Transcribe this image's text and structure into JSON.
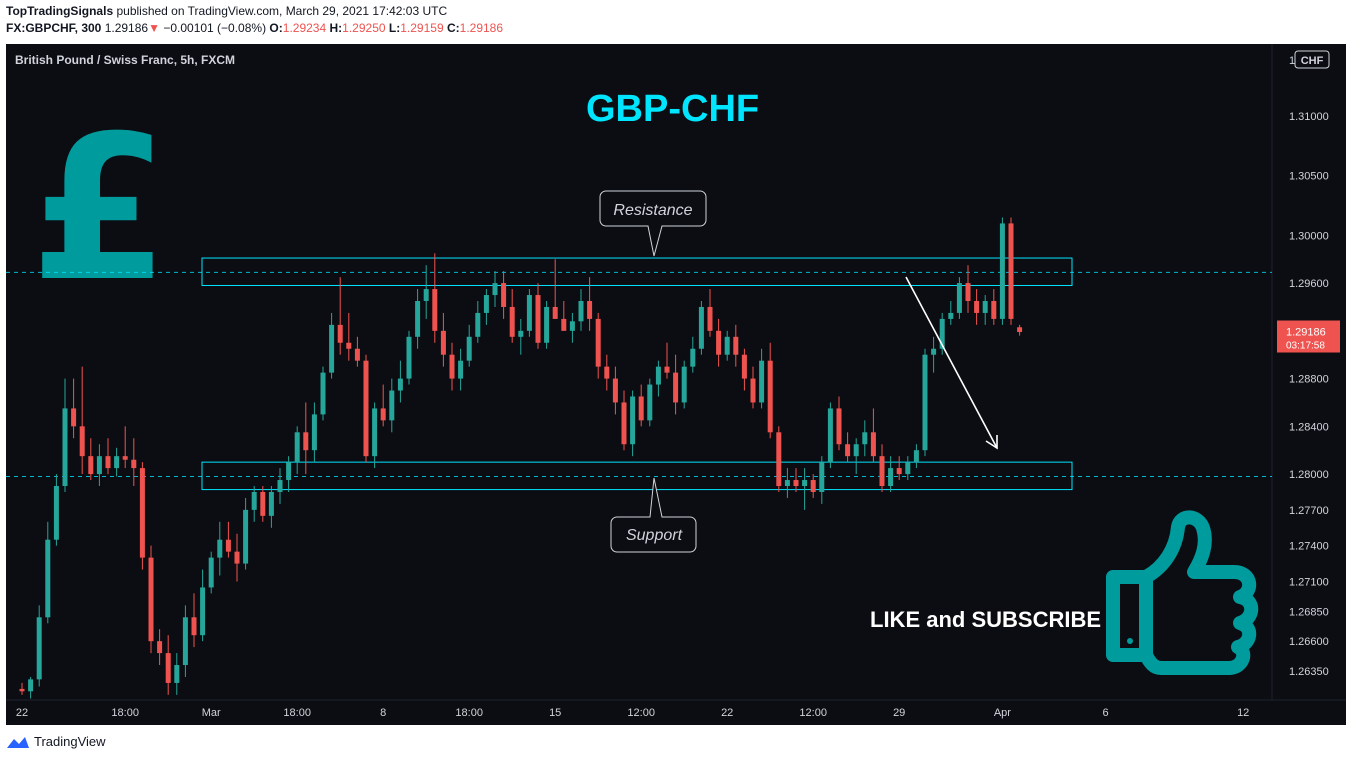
{
  "header": {
    "author": "TopTradingSignals",
    "published_text": "published on TradingView.com, March 29, 2021 17:42:03 UTC",
    "symbol": "FX:GBPCHF, 300",
    "price": "1.29186",
    "arrow": "▼",
    "change": "−0.00101 (−0.08%)",
    "o_label": "O:",
    "o_value": "1.29234",
    "h_label": "H:",
    "h_value": "1.29250",
    "l_label": "L:",
    "l_value": "1.29159",
    "c_label": "C:",
    "c_value": "1.29186"
  },
  "chart_title": "British Pound / Swiss Franc, 5h, FXCM",
  "currency_badge": "CHF",
  "scale_top_label": "1",
  "price_tag": {
    "value": "1.29186",
    "countdown": "03:17:58"
  },
  "annotations": {
    "title": "GBP-CHF",
    "resistance": "Resistance",
    "support": "Support",
    "cta": "LIKE and SUBSCRIBE"
  },
  "footer": {
    "brand": "TradingView"
  },
  "colors": {
    "up": "#26a69a",
    "down": "#ef5350",
    "accent": "#00e5ff",
    "teal_icon": "#009b9d",
    "background": "#0c0d12",
    "price_tag": "#ef5350"
  },
  "chart_data": {
    "type": "candlestick",
    "title": "",
    "xlabel": "",
    "ylabel": "",
    "ylim": [
      1.2605,
      1.315
    ],
    "y_ticks": [
      1.31,
      1.305,
      1.3,
      1.296,
      1.288,
      1.284,
      1.28,
      1.277,
      1.274,
      1.271,
      1.2685,
      1.266,
      1.2635
    ],
    "y_tick_labels": [
      "1.31000",
      "1.30500",
      "1.30000",
      "1.29600",
      "1.28800",
      "1.28400",
      "1.28000",
      "1.27700",
      "1.27400",
      "1.27100",
      "1.26850",
      "1.26600",
      "1.26350"
    ],
    "x_tick_labels": [
      {
        "label": "22",
        "bar": 0
      },
      {
        "label": "18:00",
        "bar": 12
      },
      {
        "label": "Mar",
        "bar": 22
      },
      {
        "label": "18:00",
        "bar": 32
      },
      {
        "label": "8",
        "bar": 42
      },
      {
        "label": "18:00",
        "bar": 52
      },
      {
        "label": "15",
        "bar": 62
      },
      {
        "label": "12:00",
        "bar": 72
      },
      {
        "label": "22",
        "bar": 82
      },
      {
        "label": "12:00",
        "bar": 92
      },
      {
        "label": "29",
        "bar": 102
      },
      {
        "label": "Apr",
        "bar": 114
      },
      {
        "label": "6",
        "bar": 126
      },
      {
        "label": "12",
        "bar": 142
      }
    ],
    "bar_count_axis": 150,
    "candles": [
      [
        1.262,
        1.2625,
        1.2615,
        1.2618
      ],
      [
        1.2618,
        1.263,
        1.2612,
        1.2628
      ],
      [
        1.2628,
        1.269,
        1.2622,
        1.268
      ],
      [
        1.268,
        1.276,
        1.2675,
        1.2745
      ],
      [
        1.2745,
        1.28,
        1.274,
        1.279
      ],
      [
        1.279,
        1.288,
        1.2785,
        1.2855
      ],
      [
        1.2855,
        1.288,
        1.283,
        1.284
      ],
      [
        1.284,
        1.289,
        1.28,
        1.2815
      ],
      [
        1.2815,
        1.283,
        1.2795,
        1.28
      ],
      [
        1.28,
        1.2825,
        1.279,
        1.2815
      ],
      [
        1.2815,
        1.283,
        1.28,
        1.2805
      ],
      [
        1.2805,
        1.2822,
        1.2798,
        1.2815
      ],
      [
        1.2815,
        1.284,
        1.2805,
        1.2812
      ],
      [
        1.2812,
        1.283,
        1.279,
        1.2805
      ],
      [
        1.2805,
        1.281,
        1.272,
        1.273
      ],
      [
        1.273,
        1.274,
        1.265,
        1.266
      ],
      [
        1.266,
        1.267,
        1.264,
        1.265
      ],
      [
        1.265,
        1.2665,
        1.2615,
        1.2625
      ],
      [
        1.2625,
        1.265,
        1.2615,
        1.264
      ],
      [
        1.264,
        1.269,
        1.263,
        1.268
      ],
      [
        1.268,
        1.27,
        1.2655,
        1.2665
      ],
      [
        1.2665,
        1.272,
        1.266,
        1.2705
      ],
      [
        1.2705,
        1.2735,
        1.27,
        1.273
      ],
      [
        1.273,
        1.276,
        1.2715,
        1.2745
      ],
      [
        1.2745,
        1.276,
        1.273,
        1.2735
      ],
      [
        1.2735,
        1.275,
        1.271,
        1.2725
      ],
      [
        1.2725,
        1.278,
        1.272,
        1.277
      ],
      [
        1.277,
        1.279,
        1.276,
        1.2785
      ],
      [
        1.2785,
        1.279,
        1.276,
        1.2765
      ],
      [
        1.2765,
        1.279,
        1.2755,
        1.2785
      ],
      [
        1.2785,
        1.2805,
        1.2775,
        1.2795
      ],
      [
        1.2795,
        1.2815,
        1.2785,
        1.281
      ],
      [
        1.281,
        1.284,
        1.28,
        1.2835
      ],
      [
        1.2835,
        1.286,
        1.28,
        1.282
      ],
      [
        1.282,
        1.286,
        1.281,
        1.285
      ],
      [
        1.285,
        1.289,
        1.2845,
        1.2885
      ],
      [
        1.2885,
        1.2935,
        1.288,
        1.2925
      ],
      [
        1.2925,
        1.2965,
        1.29,
        1.291
      ],
      [
        1.291,
        1.2935,
        1.2895,
        1.2905
      ],
      [
        1.2905,
        1.2915,
        1.289,
        1.2895
      ],
      [
        1.2895,
        1.29,
        1.281,
        1.2815
      ],
      [
        1.2815,
        1.286,
        1.2805,
        1.2855
      ],
      [
        1.2855,
        1.2875,
        1.284,
        1.2845
      ],
      [
        1.2845,
        1.288,
        1.2835,
        1.287
      ],
      [
        1.287,
        1.2895,
        1.286,
        1.288
      ],
      [
        1.288,
        1.292,
        1.2875,
        1.2915
      ],
      [
        1.2915,
        1.2955,
        1.2905,
        1.2945
      ],
      [
        1.2945,
        1.2975,
        1.293,
        1.2955
      ],
      [
        1.2955,
        1.2985,
        1.291,
        1.292
      ],
      [
        1.292,
        1.2935,
        1.289,
        1.29
      ],
      [
        1.29,
        1.291,
        1.287,
        1.288
      ],
      [
        1.288,
        1.2905,
        1.287,
        1.2895
      ],
      [
        1.2895,
        1.2925,
        1.289,
        1.2915
      ],
      [
        1.2915,
        1.2945,
        1.291,
        1.2935
      ],
      [
        1.2935,
        1.2955,
        1.2925,
        1.295
      ],
      [
        1.295,
        1.297,
        1.294,
        1.296
      ],
      [
        1.296,
        1.297,
        1.293,
        1.294
      ],
      [
        1.294,
        1.2955,
        1.291,
        1.2915
      ],
      [
        1.2915,
        1.293,
        1.29,
        1.292
      ],
      [
        1.292,
        1.2955,
        1.2915,
        1.295
      ],
      [
        1.295,
        1.296,
        1.2905,
        1.291
      ],
      [
        1.291,
        1.2945,
        1.2905,
        1.294
      ],
      [
        1.294,
        1.298,
        1.293,
        1.293
      ],
      [
        1.293,
        1.2945,
        1.292,
        1.292
      ],
      [
        1.292,
        1.2935,
        1.291,
        1.2928
      ],
      [
        1.2928,
        1.2955,
        1.292,
        1.2945
      ],
      [
        1.2945,
        1.2965,
        1.292,
        1.293
      ],
      [
        1.293,
        1.2935,
        1.288,
        1.289
      ],
      [
        1.289,
        1.29,
        1.287,
        1.288
      ],
      [
        1.288,
        1.289,
        1.285,
        1.286
      ],
      [
        1.286,
        1.287,
        1.282,
        1.2825
      ],
      [
        1.2825,
        1.287,
        1.2815,
        1.2865
      ],
      [
        1.2865,
        1.2875,
        1.284,
        1.2845
      ],
      [
        1.2845,
        1.288,
        1.284,
        1.2875
      ],
      [
        1.2875,
        1.2895,
        1.2865,
        1.289
      ],
      [
        1.289,
        1.291,
        1.288,
        1.2885
      ],
      [
        1.2885,
        1.29,
        1.285,
        1.286
      ],
      [
        1.286,
        1.2895,
        1.2855,
        1.289
      ],
      [
        1.289,
        1.2915,
        1.2885,
        1.2905
      ],
      [
        1.2905,
        1.2945,
        1.29,
        1.294
      ],
      [
        1.294,
        1.2955,
        1.2915,
        1.292
      ],
      [
        1.292,
        1.293,
        1.289,
        1.29
      ],
      [
        1.29,
        1.292,
        1.2895,
        1.2915
      ],
      [
        1.2915,
        1.2925,
        1.289,
        1.29
      ],
      [
        1.29,
        1.2905,
        1.287,
        1.288
      ],
      [
        1.288,
        1.289,
        1.2855,
        1.286
      ],
      [
        1.286,
        1.2905,
        1.2855,
        1.2895
      ],
      [
        1.2895,
        1.291,
        1.283,
        1.2835
      ],
      [
        1.2835,
        1.284,
        1.2785,
        1.279
      ],
      [
        1.279,
        1.2805,
        1.278,
        1.2795
      ],
      [
        1.2795,
        1.2805,
        1.2785,
        1.279
      ],
      [
        1.279,
        1.2805,
        1.277,
        1.2795
      ],
      [
        1.2795,
        1.28,
        1.278,
        1.2785
      ],
      [
        1.2785,
        1.2815,
        1.2775,
        1.281
      ],
      [
        1.281,
        1.286,
        1.2805,
        1.2855
      ],
      [
        1.2855,
        1.2865,
        1.282,
        1.2825
      ],
      [
        1.2825,
        1.2835,
        1.281,
        1.2815
      ],
      [
        1.2815,
        1.283,
        1.28,
        1.2825
      ],
      [
        1.2825,
        1.2845,
        1.2815,
        1.2835
      ],
      [
        1.2835,
        1.2855,
        1.281,
        1.2815
      ],
      [
        1.2815,
        1.2825,
        1.2785,
        1.279
      ],
      [
        1.279,
        1.2815,
        1.2785,
        1.2805
      ],
      [
        1.2805,
        1.2815,
        1.2795,
        1.28
      ],
      [
        1.28,
        1.2815,
        1.2795,
        1.281
      ],
      [
        1.281,
        1.2825,
        1.2805,
        1.282
      ],
      [
        1.282,
        1.2905,
        1.2815,
        1.29
      ],
      [
        1.29,
        1.2915,
        1.2885,
        1.2905
      ],
      [
        1.2905,
        1.2935,
        1.29,
        1.293
      ],
      [
        1.293,
        1.2945,
        1.2925,
        1.2935
      ],
      [
        1.2935,
        1.2965,
        1.293,
        1.296
      ],
      [
        1.296,
        1.2975,
        1.2935,
        1.2945
      ],
      [
        1.2945,
        1.2955,
        1.2925,
        1.2935
      ],
      [
        1.2935,
        1.295,
        1.2925,
        1.2945
      ],
      [
        1.2945,
        1.2955,
        1.2925,
        1.293
      ],
      [
        1.293,
        1.3015,
        1.2925,
        1.301
      ],
      [
        1.301,
        1.3015,
        1.2925,
        1.293
      ],
      [
        1.2923,
        1.2925,
        1.2916,
        1.2919
      ]
    ],
    "candle_x_positions_note": "",
    "levels": [
      {
        "name": "resistance",
        "top": 1.2981,
        "bottom": 1.2958
      },
      {
        "name": "support",
        "top": 1.281,
        "bottom": 1.2787
      }
    ],
    "dashed_lines": [
      1.2969,
      1.2798
    ],
    "current_price": 1.29186,
    "grid": false,
    "legend": "none"
  }
}
